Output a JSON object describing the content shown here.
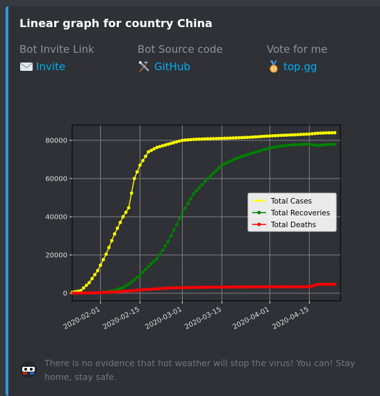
{
  "embed": {
    "title": "Linear graph for country China",
    "accent_color": "#3498db",
    "fields": [
      {
        "name": "Bot Invite Link",
        "icon": "envelope-icon",
        "value": "Invite"
      },
      {
        "name": "Bot Source code",
        "icon": "tools-icon",
        "value": "GitHub"
      },
      {
        "name": "Vote for me",
        "icon": "medal-icon",
        "value": "top.gg"
      }
    ],
    "footer": {
      "icon": "bot-avatar-icon",
      "text": "There is no evidence that hot weather will stop the virus! You can! Stay home, stay safe."
    }
  },
  "chart_data": {
    "type": "line",
    "title": "",
    "xlabel": "",
    "ylabel": "",
    "xlim": [
      "2020-01-22",
      "2020-04-26"
    ],
    "ylim": [
      -4000,
      88000
    ],
    "grid": true,
    "legend_position": "center-right",
    "x_ticks": [
      "2020-02-01",
      "2020-02-15",
      "2020-03-01",
      "2020-03-15",
      "2020-04-01",
      "2020-04-15"
    ],
    "y_ticks": [
      0,
      20000,
      40000,
      60000,
      80000
    ],
    "x": [
      "2020-01-22",
      "2020-01-25",
      "2020-01-28",
      "2020-01-31",
      "2020-02-03",
      "2020-02-06",
      "2020-02-09",
      "2020-02-11",
      "2020-02-13",
      "2020-02-15",
      "2020-02-18",
      "2020-02-21",
      "2020-02-25",
      "2020-03-01",
      "2020-03-05",
      "2020-03-10",
      "2020-03-15",
      "2020-03-20",
      "2020-03-25",
      "2020-04-01",
      "2020-04-05",
      "2020-04-10",
      "2020-04-15",
      "2020-04-18",
      "2020-04-21",
      "2020-04-24"
    ],
    "series": [
      {
        "name": "Total Cases",
        "color": "#ffff00",
        "values": [
          500,
          1300,
          5500,
          11800,
          20400,
          31000,
          40000,
          44700,
          60000,
          67000,
          74000,
          76300,
          78000,
          80000,
          80500,
          80800,
          81000,
          81300,
          81600,
          82300,
          82600,
          82900,
          83300,
          83700,
          83900,
          84000
        ]
      },
      {
        "name": "Total Recoveries",
        "color": "#008000",
        "values": [
          28,
          40,
          100,
          230,
          600,
          1500,
          3000,
          4700,
          7000,
          9400,
          14000,
          18000,
          27000,
          42000,
          52000,
          60000,
          67000,
          70500,
          73000,
          76000,
          77000,
          77700,
          78000,
          77200,
          77700,
          78000
        ]
      },
      {
        "name": "Total Deaths",
        "color": "#ff0000",
        "values": [
          17,
          56,
          131,
          259,
          425,
          636,
          908,
          1113,
          1380,
          1665,
          2004,
          2247,
          2700,
          2873,
          3015,
          3136,
          3199,
          3250,
          3277,
          3310,
          3330,
          3340,
          3342,
          4632,
          4636,
          4637
        ]
      }
    ]
  }
}
